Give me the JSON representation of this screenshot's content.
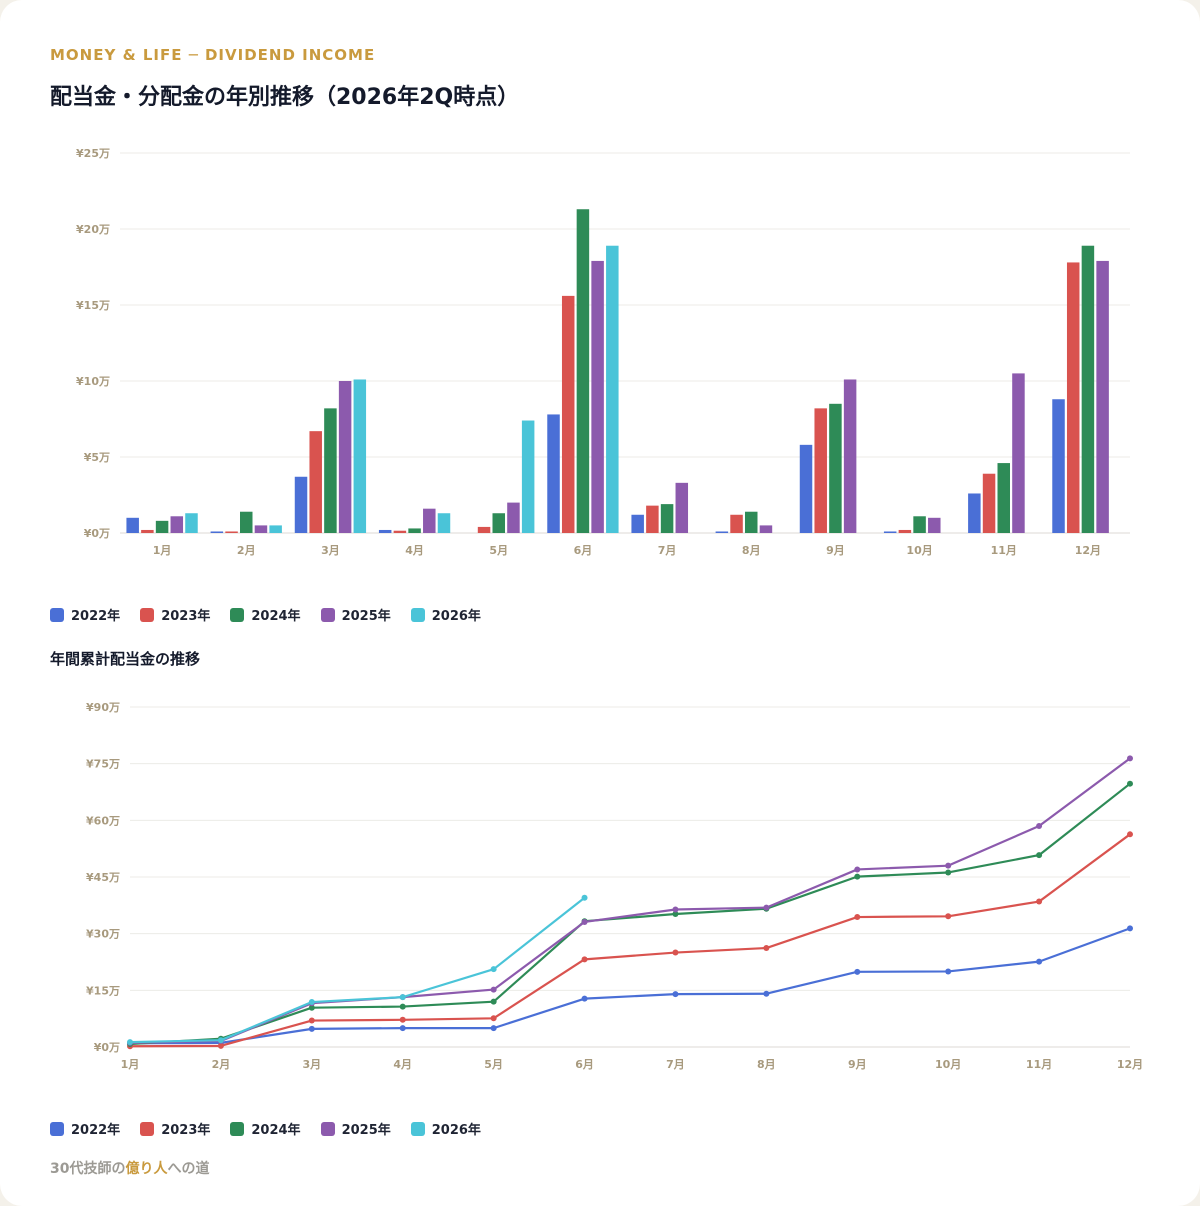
{
  "header": {
    "eyebrow": "MONEY & LIFE ─ DIVIDEND INCOME",
    "title": "配当金・分配金の年別推移（2026年2Q時点）"
  },
  "section2": {
    "title": "年間累計配当金の推移"
  },
  "footer": {
    "prefix": "30代技師の",
    "accent": "億り人",
    "suffix": "への道"
  },
  "colors": {
    "2022年": "#4a6fd6",
    "2023年": "#d9534f",
    "2024年": "#2e8b57",
    "2025年": "#8c5aad",
    "2026年": "#4ac4d8"
  },
  "chart_data": [
    {
      "type": "bar",
      "categories": [
        "1月",
        "2月",
        "3月",
        "4月",
        "5月",
        "6月",
        "7月",
        "8月",
        "9月",
        "10月",
        "11月",
        "12月"
      ],
      "y_ticks": [
        "¥0万",
        "¥5万",
        "¥10万",
        "¥15万",
        "¥20万",
        "¥25万"
      ],
      "ylim": [
        0,
        25
      ],
      "grid": true,
      "legend_position": "bottom-left",
      "series": [
        {
          "name": "2022年",
          "values": [
            1.0,
            0.1,
            3.7,
            0.2,
            0.0,
            7.8,
            1.2,
            0.1,
            5.8,
            0.1,
            2.6,
            8.8
          ]
        },
        {
          "name": "2023年",
          "values": [
            0.2,
            0.1,
            6.7,
            0.15,
            0.4,
            15.6,
            1.8,
            1.2,
            8.2,
            0.2,
            3.9,
            17.8
          ]
        },
        {
          "name": "2024年",
          "values": [
            0.8,
            1.4,
            8.2,
            0.3,
            1.3,
            21.3,
            1.9,
            1.4,
            8.5,
            1.1,
            4.6,
            18.9
          ]
        },
        {
          "name": "2025年",
          "values": [
            1.1,
            0.5,
            10.0,
            1.6,
            2.0,
            17.9,
            3.3,
            0.5,
            10.1,
            1.0,
            10.5,
            17.9
          ]
        },
        {
          "name": "2026年",
          "values": [
            1.3,
            0.5,
            10.1,
            1.3,
            7.4,
            18.9,
            null,
            null,
            null,
            null,
            null,
            null
          ]
        }
      ]
    },
    {
      "type": "line",
      "title": "年間累計配当金の推移",
      "categories": [
        "1月",
        "2月",
        "3月",
        "4月",
        "5月",
        "6月",
        "7月",
        "8月",
        "9月",
        "10月",
        "11月",
        "12月"
      ],
      "y_ticks": [
        "¥0万",
        "¥15万",
        "¥30万",
        "¥45万",
        "¥60万",
        "¥75万",
        "¥90万"
      ],
      "ylim": [
        0,
        90
      ],
      "grid": true,
      "legend_position": "bottom-left",
      "series": [
        {
          "name": "2022年",
          "values": [
            1.0,
            1.1,
            4.8,
            5.0,
            5.0,
            12.8,
            14.0,
            14.1,
            19.9,
            20.0,
            22.6,
            31.4
          ]
        },
        {
          "name": "2023年",
          "values": [
            0.2,
            0.3,
            7.0,
            7.2,
            7.6,
            23.2,
            25.0,
            26.2,
            34.4,
            34.6,
            38.5,
            56.3
          ]
        },
        {
          "name": "2024年",
          "values": [
            0.8,
            2.2,
            10.4,
            10.7,
            12.0,
            33.3,
            35.2,
            36.6,
            45.1,
            46.2,
            50.8,
            69.7
          ]
        },
        {
          "name": "2025年",
          "values": [
            1.1,
            1.6,
            11.6,
            13.2,
            15.2,
            33.1,
            36.4,
            36.9,
            47.0,
            48.0,
            58.5,
            76.4
          ]
        },
        {
          "name": "2026年",
          "values": [
            1.3,
            1.8,
            11.9,
            13.2,
            20.6,
            39.5,
            null,
            null,
            null,
            null,
            null,
            null
          ]
        }
      ]
    }
  ]
}
